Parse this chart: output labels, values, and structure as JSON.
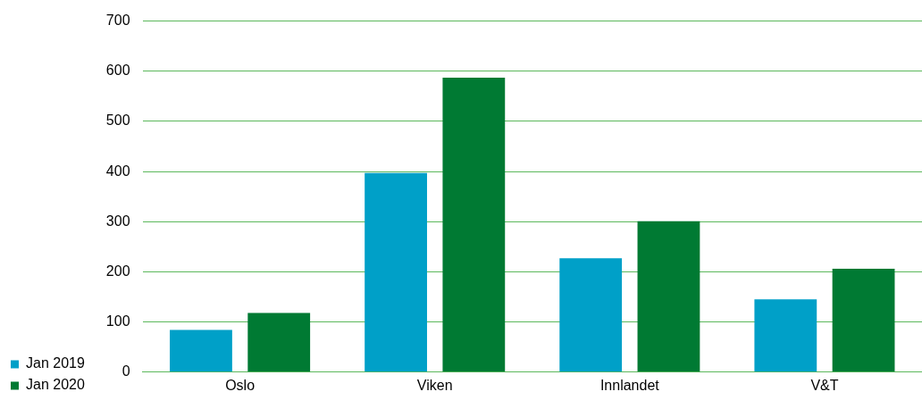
{
  "chart_data": {
    "type": "bar",
    "categories": [
      "Oslo",
      "Viken",
      "Innlandet",
      "V&T"
    ],
    "series": [
      {
        "name": "Jan 2019",
        "color": "#00a0c8",
        "values": [
          84,
          397,
          227,
          145
        ]
      },
      {
        "name": "Jan 2020",
        "color": "#007a33",
        "values": [
          118,
          587,
          301,
          206
        ]
      }
    ],
    "ylim": [
      0,
      700
    ],
    "yticks": [
      0,
      100,
      200,
      300,
      400,
      500,
      600,
      700
    ],
    "grid": "y",
    "legend": "bottom left"
  }
}
